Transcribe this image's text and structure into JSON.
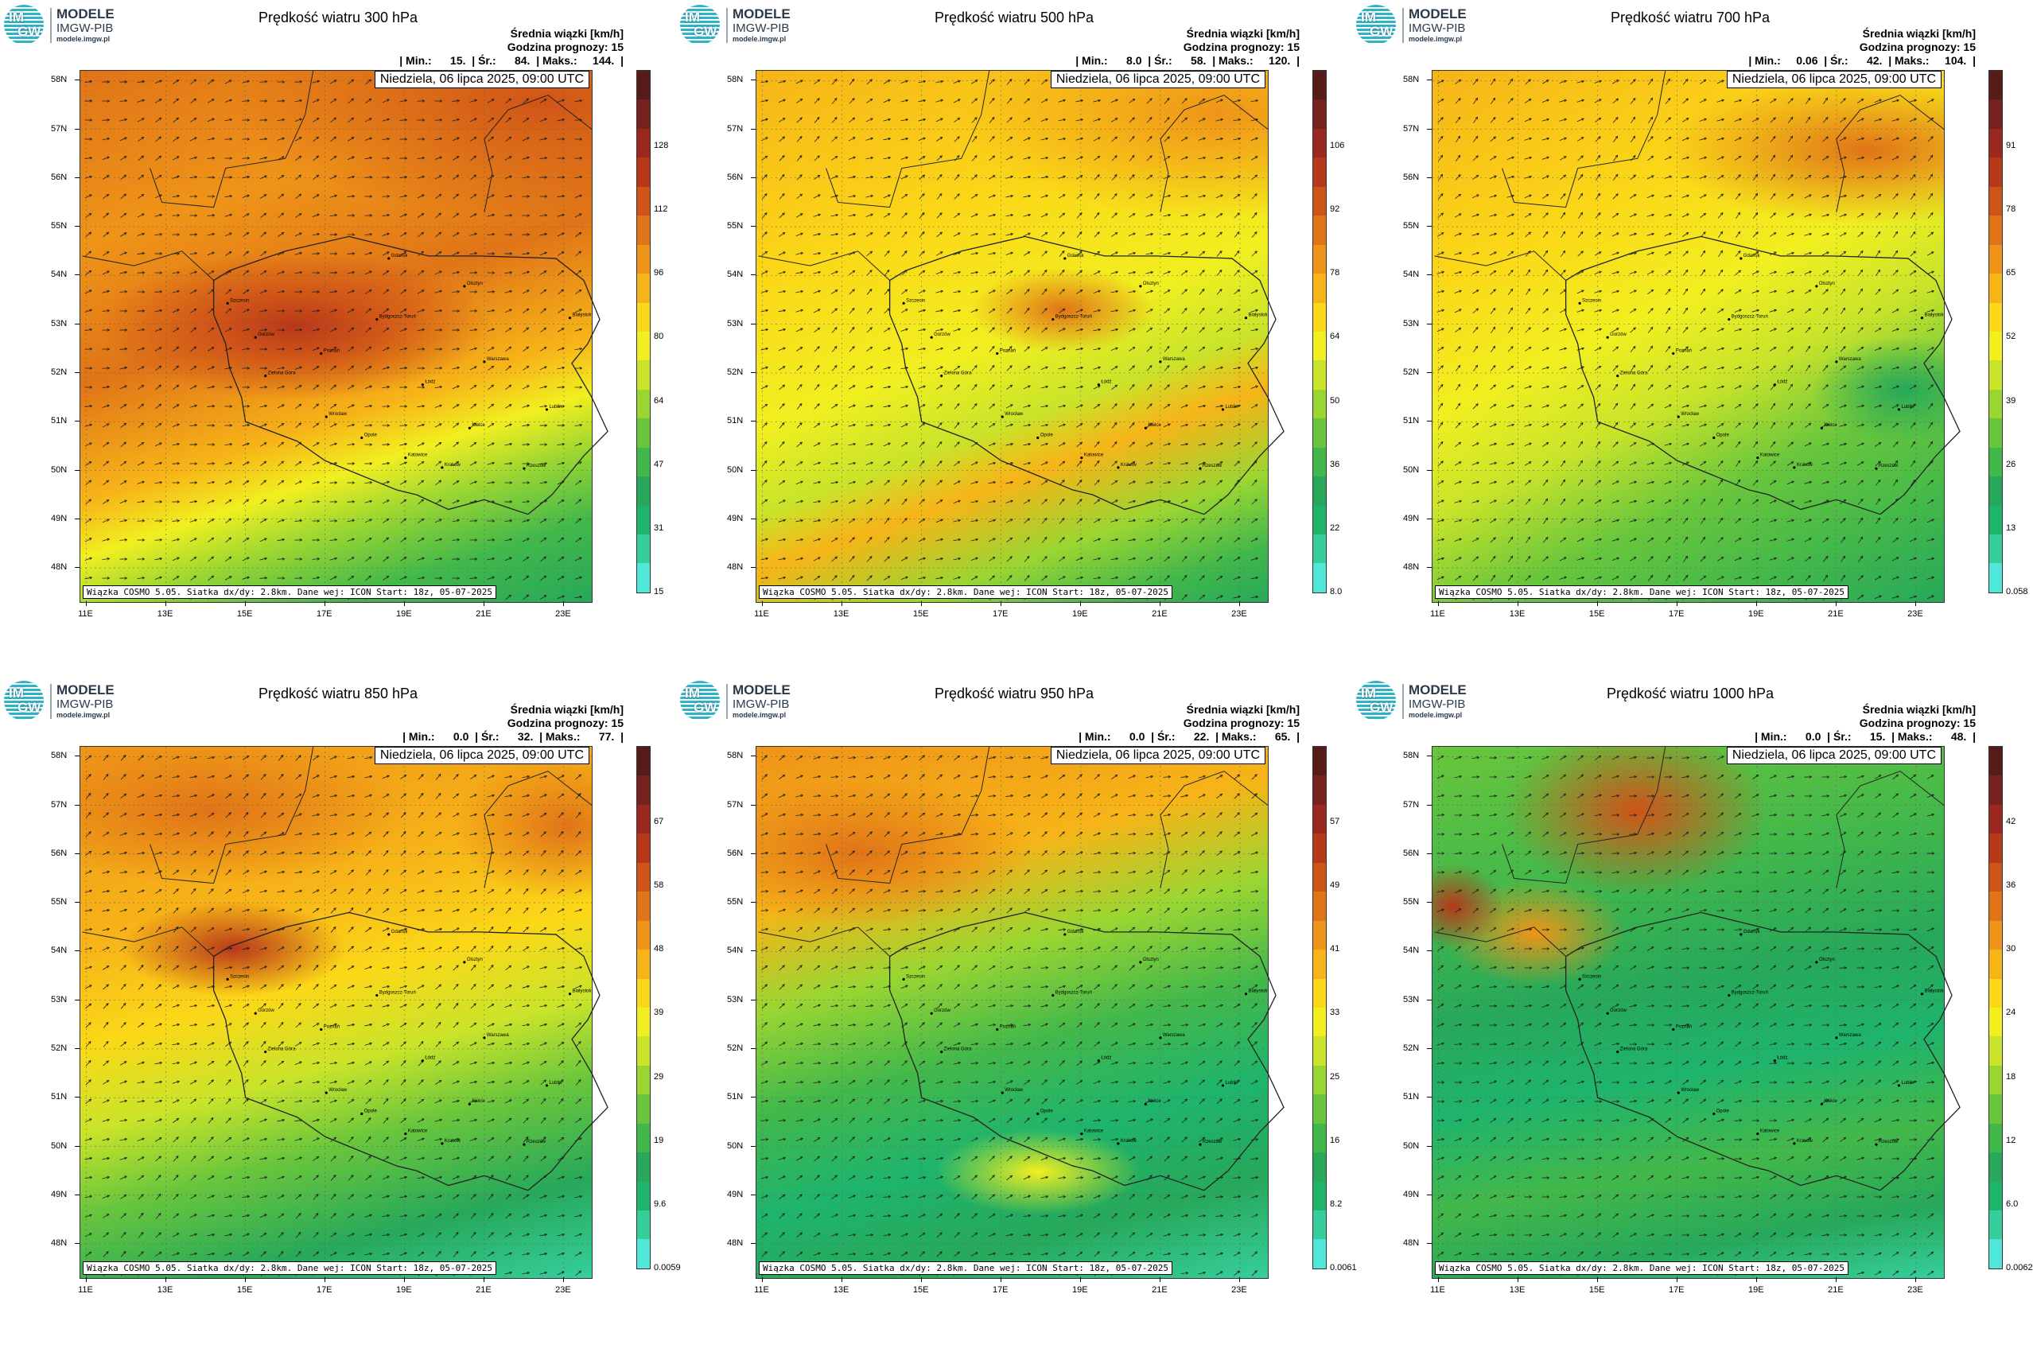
{
  "logo": {
    "l1": "IM",
    "l2": "GW",
    "title": "MODELE",
    "org": "IMGW-PIB",
    "url": "modele.imgw.pl"
  },
  "subtitle_line1": "Średnia wiązki [km/h]",
  "subtitle_line2": "Godzina prognozy: 15",
  "date_label": "Niedziela, 06 lipca 2025, 09:00 UTC",
  "footer": "Wiązka COSMO 5.05. Siatka dx/dy: 2.8km. Dane wej: ICON Start: 18z, 05-07-2025",
  "lat_labels": [
    "58N",
    "57N",
    "56N",
    "55N",
    "54N",
    "53N",
    "52N",
    "51N",
    "50N",
    "49N",
    "48N"
  ],
  "lon_labels": [
    "11E",
    "13E",
    "15E",
    "17E",
    "19E",
    "21E",
    "23E"
  ],
  "colorbar_colors": [
    "#4fe8d8",
    "#36cf9c",
    "#1fb46c",
    "#27a85a",
    "#43b84a",
    "#69c63c",
    "#9ad632",
    "#c9e42a",
    "#f1ef20",
    "#fbd818",
    "#f7b418",
    "#ef9418",
    "#e07418",
    "#cf5418",
    "#b8381a",
    "#9a281e",
    "#782220",
    "#561c1a"
  ],
  "cities": [
    {
      "name": "Gdańsk",
      "lon": 18.6,
      "lat": 54.35
    },
    {
      "name": "Olsztyn",
      "lon": 20.5,
      "lat": 53.78
    },
    {
      "name": "Białystok",
      "lon": 23.15,
      "lat": 53.13
    },
    {
      "name": "Szczecin",
      "lon": 14.55,
      "lat": 53.43
    },
    {
      "name": "Bydgoszcz-Toruń",
      "lon": 18.3,
      "lat": 53.1
    },
    {
      "name": "Gorzów",
      "lon": 15.25,
      "lat": 52.73
    },
    {
      "name": "Poznań",
      "lon": 16.9,
      "lat": 52.4
    },
    {
      "name": "Warszawa",
      "lon": 21.0,
      "lat": 52.23
    },
    {
      "name": "Łódź",
      "lon": 19.45,
      "lat": 51.76
    },
    {
      "name": "Zielona Góra",
      "lon": 15.5,
      "lat": 51.94
    },
    {
      "name": "Lublin",
      "lon": 22.57,
      "lat": 51.25
    },
    {
      "name": "Wrocław",
      "lon": 17.03,
      "lat": 51.1
    },
    {
      "name": "Opole",
      "lon": 17.92,
      "lat": 50.67
    },
    {
      "name": "Kielce",
      "lon": 20.63,
      "lat": 50.87
    },
    {
      "name": "Katowice",
      "lon": 19.02,
      "lat": 50.26
    },
    {
      "name": "Kraków",
      "lon": 19.94,
      "lat": 50.06
    },
    {
      "name": "Rzeszów",
      "lon": 22.0,
      "lat": 50.04
    }
  ],
  "panels": [
    {
      "title": "Prędkość wiatru 300 hPa",
      "stats": "| Min.:      15.  | Śr.:      84.  | Maks.:     144.  |",
      "cbar_labels": [
        "128",
        "112",
        "96",
        "80",
        "64",
        "47",
        "31",
        "15"
      ],
      "wind_dir_deg": 70,
      "pattern": "jet300"
    },
    {
      "title": "Prędkość wiatru 500 hPa",
      "stats": "| Min.:      8.0  | Śr.:      58.  | Maks.:     120.  |",
      "cbar_labels": [
        "106",
        "92",
        "78",
        "64",
        "50",
        "36",
        "22",
        "8.0"
      ],
      "wind_dir_deg": 60,
      "pattern": "jet500"
    },
    {
      "title": "Prędkość wiatru 700 hPa",
      "stats": "| Min.:     0.06  | Śr.:      42.  | Maks.:     104.  |",
      "cbar_labels": [
        "91",
        "78",
        "65",
        "52",
        "39",
        "26",
        "13",
        "0.058"
      ],
      "wind_dir_deg": 55,
      "pattern": "jet700"
    },
    {
      "title": "Prędkość wiatru 850 hPa",
      "stats": "| Min.:      0.0  | Śr.:      32.  | Maks.:      77.  |",
      "cbar_labels": [
        "67",
        "58",
        "48",
        "39",
        "29",
        "19",
        "9.6",
        "0.0059"
      ],
      "wind_dir_deg": 60,
      "pattern": "lvl850"
    },
    {
      "title": "Prędkość wiatru 950 hPa",
      "stats": "| Min.:      0.0  | Śr.:      22.  | Maks.:      65.  |",
      "cbar_labels": [
        "57",
        "49",
        "41",
        "33",
        "25",
        "16",
        "8.2",
        "0.0061"
      ],
      "wind_dir_deg": 65,
      "pattern": "lvl950"
    },
    {
      "title": "Prędkość wiatru 1000 hPa",
      "stats": "| Min.:      0.0  | Śr.:      15.  | Maks.:      48.  |",
      "cbar_labels": [
        "42",
        "36",
        "30",
        "24",
        "18",
        "12",
        "6.0",
        "0.0062"
      ],
      "wind_dir_deg": 70,
      "pattern": "lvl1000"
    }
  ]
}
